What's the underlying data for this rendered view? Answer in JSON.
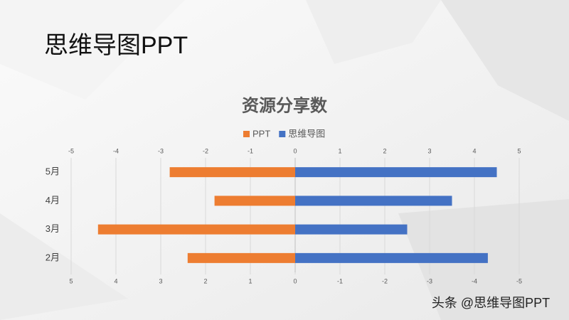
{
  "slide_title": "思维导图PPT",
  "watermark": "头条 @思维导图PPT",
  "chart_data": {
    "type": "butterfly-bar",
    "title": "资源分享数",
    "categories": [
      "2月",
      "3月",
      "4月",
      "5月"
    ],
    "series": [
      {
        "name": "PPT",
        "color": "#ed7d31",
        "values": [
          -2.4,
          -4.4,
          -1.8,
          -2.8
        ]
      },
      {
        "name": "思维导图",
        "color": "#4472c4",
        "values": [
          4.3,
          2.5,
          3.5,
          4.5
        ]
      }
    ],
    "xlim": [
      -5,
      5
    ],
    "xticks": [
      -5,
      -4,
      -3,
      -2,
      -1,
      0,
      1,
      2,
      3,
      4,
      5
    ],
    "x2ticks": [
      {
        "value": -5,
        "label": "5"
      },
      {
        "value": -4,
        "label": "4"
      },
      {
        "value": -3,
        "label": "3"
      },
      {
        "value": -2,
        "label": "2"
      },
      {
        "value": -1,
        "label": "1"
      },
      0,
      {
        "value": 1,
        "label": "-1"
      },
      {
        "value": 2,
        "label": "-2"
      },
      {
        "value": 3,
        "label": "-3"
      },
      {
        "value": 4,
        "label": "-4"
      },
      {
        "value": 5,
        "label": "-5"
      }
    ],
    "grid": true,
    "legend": "top"
  }
}
